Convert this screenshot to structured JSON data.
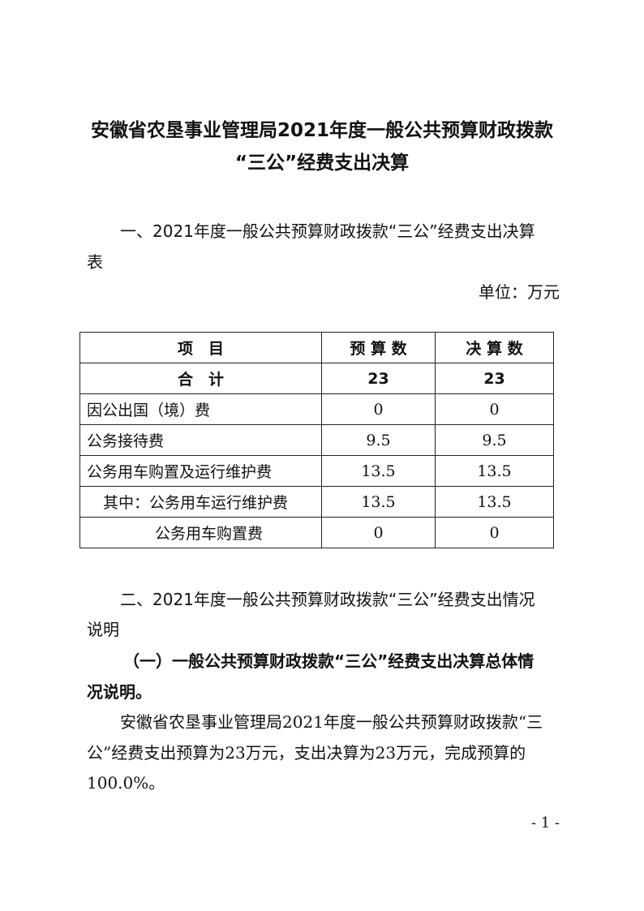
{
  "title": {
    "line1": "安徽省农垦事业管理局2021年度一般公共预算财政拨款",
    "line2": "“三公”经费支出决算"
  },
  "section1": {
    "heading_line1": "一、2021年度一般公共预算财政拨款“三公”经费支出决算",
    "heading_line2": "表",
    "unit": "单位：万元"
  },
  "table": {
    "headers": [
      "项　目",
      "预 算 数",
      "决 算 数"
    ],
    "rows": [
      {
        "item": "合　计",
        "budget": "23",
        "final": "23"
      },
      {
        "item": "因公出国（境）费",
        "budget": "0",
        "final": "0"
      },
      {
        "item": "公务接待费",
        "budget": "9.5",
        "final": "9.5"
      },
      {
        "item": "公务用车购置及运行维护费",
        "budget": "13.5",
        "final": "13.5"
      },
      {
        "item": "其中：公务用车运行维护费",
        "budget": "13.5",
        "final": "13.5"
      },
      {
        "item": "公务用车购置费",
        "budget": "0",
        "final": "0"
      }
    ]
  },
  "section2": {
    "heading_line1": "二、2021年度一般公共预算财政拨款“三公”经费支出情况",
    "heading_line2": "说明",
    "sub_line1": "（一）一般公共预算财政拨款“三公”经费支出决算总体情",
    "sub_line2": "况说明。",
    "body_line1": "安徽省农垦事业管理局2021年度一般公共预算财政拨款“三",
    "body_line2": "公”经费支出预算为23万元，支出决算为23万元，完成预算的",
    "body_line3": "100.0%。"
  },
  "page_number": "- 1 -"
}
